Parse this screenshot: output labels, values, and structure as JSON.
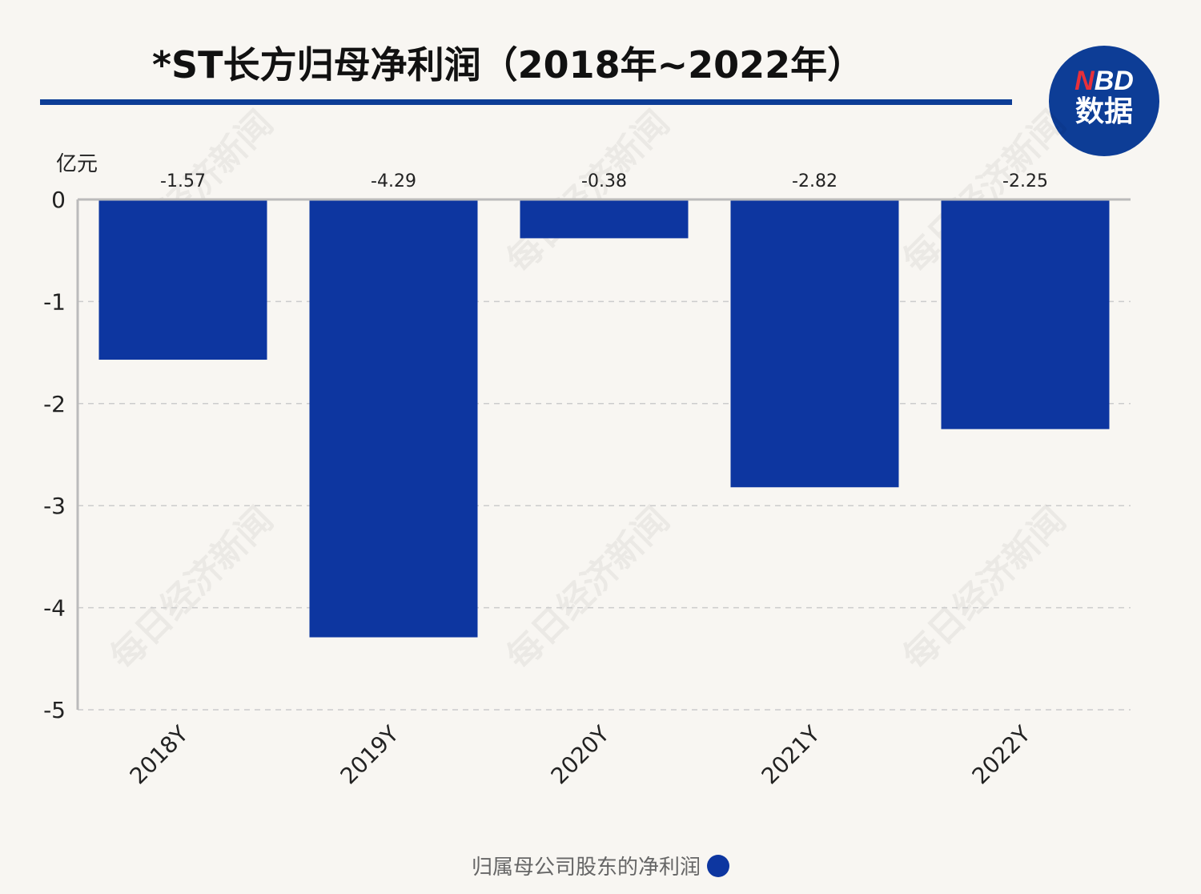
{
  "chart_data": {
    "type": "bar",
    "title": "*ST长方归母净利润（2018年~2022年）",
    "ylabel": "亿元",
    "categories": [
      "2018Y",
      "2019Y",
      "2020Y",
      "2021Y",
      "2022Y"
    ],
    "series": [
      {
        "name": "归属母公司股东的净利润",
        "values": [
          -1.57,
          -4.29,
          -0.38,
          -2.82,
          -2.25
        ],
        "color": "#0d36a0"
      }
    ],
    "data_labels": [
      "-1.57",
      "-4.29",
      "-0.38",
      "-2.82",
      "-2.25"
    ],
    "ylim": [
      -5,
      0
    ],
    "yticks": [
      0,
      -1,
      -2,
      -3,
      -4,
      -5
    ],
    "grid": "horizontal dashed",
    "legend": "bottom-center"
  },
  "logo": {
    "line1_n": "N",
    "line1_rest": "BD",
    "line2": "数据"
  },
  "watermark": "每日经济新闻"
}
